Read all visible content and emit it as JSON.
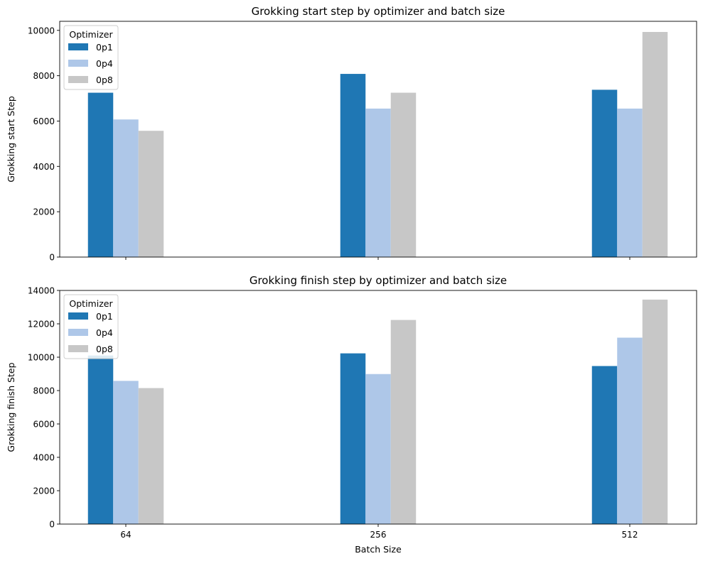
{
  "chart_data": [
    {
      "type": "bar",
      "title": "Grokking start step by optimizer and batch size",
      "xlabel": "",
      "ylabel": "Grokking start Step",
      "categories": [
        "64",
        "256",
        "512"
      ],
      "show_x_tick_labels": false,
      "ylim": [
        0,
        10400
      ],
      "yticks": [
        0,
        2000,
        4000,
        6000,
        8000,
        10000
      ],
      "legend": {
        "title": "Optimizer",
        "position": "top-left"
      },
      "series": [
        {
          "name": "0p1",
          "color": "#1f77b4",
          "values": [
            7250,
            8080,
            7380
          ]
        },
        {
          "name": "0p4",
          "color": "#aec7e8",
          "values": [
            6070,
            6550,
            6550
          ]
        },
        {
          "name": "0p8",
          "color": "#c7c7c7",
          "values": [
            5570,
            7250,
            9930
          ]
        }
      ]
    },
    {
      "type": "bar",
      "title": "Grokking finish step by optimizer and batch size",
      "xlabel": "Batch Size",
      "ylabel": "Grokking finish Step",
      "categories": [
        "64",
        "256",
        "512"
      ],
      "show_x_tick_labels": true,
      "ylim": [
        0,
        14000
      ],
      "yticks": [
        0,
        2000,
        4000,
        6000,
        8000,
        10000,
        12000,
        14000
      ],
      "legend": {
        "title": "Optimizer",
        "position": "top-left"
      },
      "series": [
        {
          "name": "0p1",
          "color": "#1f77b4",
          "values": [
            10100,
            10230,
            9470
          ]
        },
        {
          "name": "0p4",
          "color": "#aec7e8",
          "values": [
            8580,
            8990,
            11170
          ]
        },
        {
          "name": "0p8",
          "color": "#c7c7c7",
          "values": [
            8150,
            12230,
            13450
          ]
        }
      ]
    }
  ]
}
